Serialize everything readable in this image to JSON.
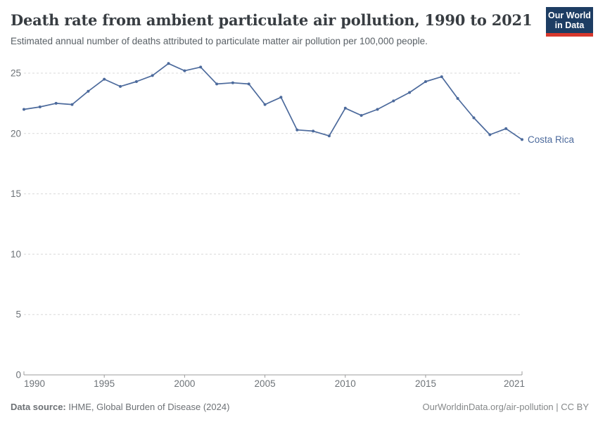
{
  "header": {
    "title": "Death rate from ambient particulate air pollution, 1990 to 2021",
    "subtitle": "Estimated annual number of deaths attributed to particulate matter air pollution per 100,000 people.",
    "logo_line1": "Our World",
    "logo_line2": "in Data"
  },
  "chart_data": {
    "type": "line",
    "title": "Death rate from ambient particulate air pollution, 1990 to 2021",
    "x": [
      1990,
      1991,
      1992,
      1993,
      1994,
      1995,
      1996,
      1997,
      1998,
      1999,
      2000,
      2001,
      2002,
      2003,
      2004,
      2005,
      2006,
      2007,
      2008,
      2009,
      2010,
      2011,
      2012,
      2013,
      2014,
      2015,
      2016,
      2017,
      2018,
      2019,
      2020,
      2021
    ],
    "series": [
      {
        "name": "Costa Rica",
        "color": "#4C6A9C",
        "values": [
          22.0,
          22.2,
          22.5,
          22.4,
          23.5,
          24.5,
          23.9,
          24.3,
          24.8,
          25.8,
          25.2,
          25.5,
          24.1,
          24.2,
          24.1,
          22.4,
          23.0,
          20.3,
          20.2,
          19.8,
          22.1,
          21.5,
          22.0,
          22.7,
          23.4,
          24.3,
          24.7,
          22.9,
          21.3,
          19.9,
          20.4,
          19.5
        ]
      }
    ],
    "end_label": "Costa Rica",
    "xlabel": "",
    "ylabel": "",
    "xlim": [
      1990,
      2021
    ],
    "ylim": [
      0,
      25
    ],
    "x_ticks": [
      1990,
      1995,
      2000,
      2005,
      2010,
      2015,
      2021
    ],
    "y_ticks": [
      0,
      5,
      10,
      15,
      20,
      25
    ],
    "grid": "horizontal-dashed",
    "legend_position": "end-of-line"
  },
  "footer": {
    "source_bold": "Data source:",
    "source_rest": " IHME, Global Burden of Disease (2024)",
    "credit": "OurWorldinData.org/air-pollution | CC BY"
  },
  "colors": {
    "line": "#4C6A9C",
    "gridline": "#d9d9d9",
    "axis_line": "#9c9c9c",
    "axis_label": "#6e7378",
    "background": "#ffffff"
  }
}
